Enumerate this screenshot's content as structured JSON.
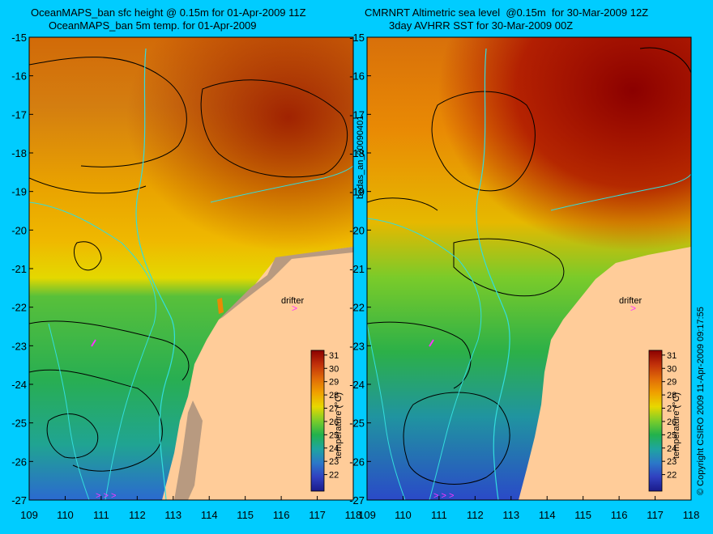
{
  "left_panel": {
    "title_line1": "OceanMAPS_ban sfc height @ 0.15m for 01-Apr-2009 11Z",
    "title_line2": "OceanMAPS_ban 5m temp. for 01-Apr-2009"
  },
  "right_panel": {
    "title_line1": "CMRNRT Altimetric sea level  @0.15m  for 30-Mar-2009 12Z",
    "title_line2": "3day AVHRR SST for 30-Mar-2009 00Z"
  },
  "side_labels": {
    "middle": "bodas_an_20090401",
    "right": "© Copyright CSIRO 2009   11-Apr-2009 09:17:55"
  },
  "axes": {
    "x_ticks": [
      "109",
      "110",
      "111",
      "112",
      "113",
      "114",
      "115",
      "116",
      "117",
      "118"
    ],
    "y_ticks": [
      "-15",
      "-16",
      "-17",
      "-18",
      "-19",
      "-20",
      "-21",
      "-22",
      "-23",
      "-24",
      "-25",
      "-26",
      "-27"
    ],
    "lon_range": [
      109,
      118
    ],
    "lat_range": [
      -27,
      -15
    ]
  },
  "colorbar": {
    "label": "temperature (°C)",
    "ticks": [
      "31",
      "30",
      "29",
      "28",
      "27",
      "26",
      "25",
      "24",
      "23",
      "22"
    ],
    "colors": [
      "#8b0000",
      "#c1300a",
      "#e06a08",
      "#f0a000",
      "#e8d800",
      "#7ccd2a",
      "#22b24c",
      "#1ea5a0",
      "#2b78c8",
      "#3040c0",
      "#1a1a8a"
    ]
  },
  "drifter": {
    "label": "drifter"
  },
  "colors": {
    "background": "#00ccff",
    "land": "#ffcc99",
    "contour": "#000000",
    "bathymetry": "#33dddd",
    "drifter_marker": "#ff33ff"
  }
}
